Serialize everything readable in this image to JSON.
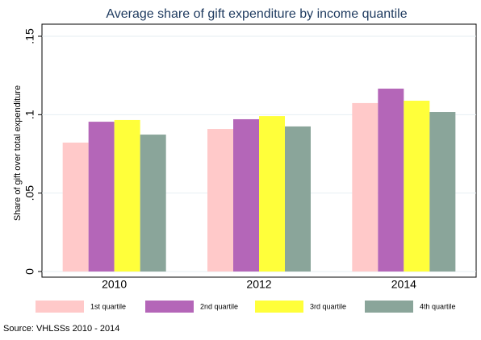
{
  "chart_data": {
    "type": "bar",
    "title": "Average share of gift expenditure by income quantile",
    "y_label": "Share of gift over total expenditure",
    "note": "Source: VHLSSs 2010 - 2014",
    "categories": [
      "2010",
      "2012",
      "2014"
    ],
    "series": [
      {
        "name": "1st quartile",
        "color": "#ffc9c9",
        "values": [
          0.0822,
          0.0909,
          0.1074
        ]
      },
      {
        "name": "2nd quartile",
        "color": "#b466b8",
        "values": [
          0.0955,
          0.0971,
          0.1166
        ]
      },
      {
        "name": "3rd quartile",
        "color": "#ffff3a",
        "values": [
          0.0966,
          0.0991,
          0.1089
        ]
      },
      {
        "name": "4th quartile",
        "color": "#8aa59a",
        "values": [
          0.0873,
          0.0925,
          0.1017
        ]
      }
    ],
    "ylim": [
      0,
      0.15
    ],
    "yticks": [
      0,
      {
        "value": 0.05,
        "label": ".05"
      },
      {
        "value": 0.1,
        "label": ".1"
      },
      {
        "value": 0.15,
        "label": ".15"
      }
    ],
    "grid": true
  }
}
